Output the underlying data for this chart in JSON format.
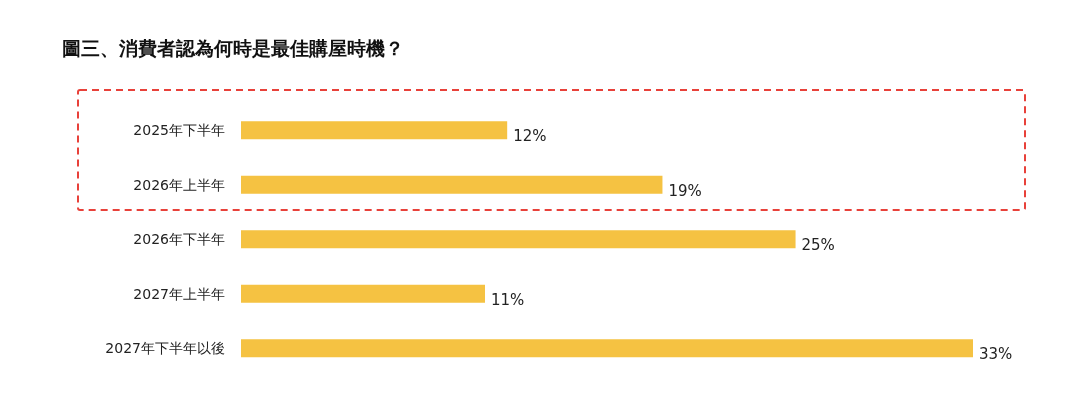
{
  "chart_data": {
    "type": "bar",
    "orientation": "horizontal",
    "title": "圖三、消費者認為何時是最佳購屋時機？",
    "categories": [
      "2025年下半年",
      "2026年上半年",
      "2026年下半年",
      "2027年上半年",
      "2027年下半年以後"
    ],
    "values": [
      12,
      19,
      25,
      11,
      33
    ],
    "color": "#f5c242",
    "value_labels": [
      "12%",
      "19%",
      "25%",
      "11%",
      "33%"
    ]
  }
}
